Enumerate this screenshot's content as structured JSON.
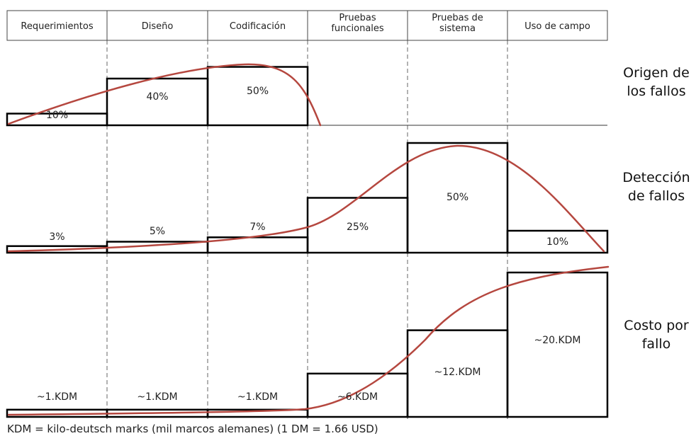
{
  "chart_data": [
    {
      "type": "bar",
      "categories": [
        "Requerimientos",
        "Diseño",
        "Codificación",
        "Pruebas funcionales",
        "Pruebas de sistema",
        "Uso de campo"
      ],
      "title": "Origen de los fallos",
      "unit": "%",
      "values": [
        10,
        40,
        50,
        0,
        0,
        0
      ],
      "value_labels": [
        "10%",
        "40%",
        "50%",
        "",
        "",
        ""
      ],
      "trend_curve": true
    },
    {
      "type": "bar",
      "categories": [
        "Requerimientos",
        "Diseño",
        "Codificación",
        "Pruebas funcionales",
        "Pruebas de sistema",
        "Uso de campo"
      ],
      "title": "Detección de fallos",
      "unit": "%",
      "values": [
        3,
        5,
        7,
        25,
        50,
        10
      ],
      "value_labels": [
        "3%",
        "5%",
        "7%",
        "25%",
        "50%",
        "10%"
      ],
      "trend_curve": true
    },
    {
      "type": "bar",
      "categories": [
        "Requerimientos",
        "Diseño",
        "Codificación",
        "Pruebas funcionales",
        "Pruebas de sistema",
        "Uso de campo"
      ],
      "title": "Costo por fallo",
      "unit": "KDM",
      "values": [
        1,
        1,
        1,
        6,
        12,
        20
      ],
      "value_labels": [
        "~1.KDM",
        "~1.KDM",
        "~1.KDM",
        "~6.KDM",
        "~12.KDM",
        "~20.KDM"
      ],
      "trend_curve": true
    }
  ],
  "header": {
    "columns": [
      [
        "Requerimientos"
      ],
      [
        "Diseño"
      ],
      [
        "Codificación"
      ],
      [
        "Pruebas",
        "funcionales"
      ],
      [
        "Pruebas de",
        "sistema"
      ],
      [
        "Uso de campo"
      ]
    ]
  },
  "row_titles": [
    [
      "Origen de",
      "los fallos"
    ],
    [
      "Detección",
      "de fallos"
    ],
    [
      "Costo por",
      "fallo"
    ]
  ],
  "footnote": "KDM = kilo-deutsch marks (mil marcos alemanes) (1 DM = 1.66 USD)",
  "colors": {
    "bar_stroke": "#000000",
    "curve": "#b5473f",
    "grid": "#666666",
    "divider": "#333333"
  }
}
